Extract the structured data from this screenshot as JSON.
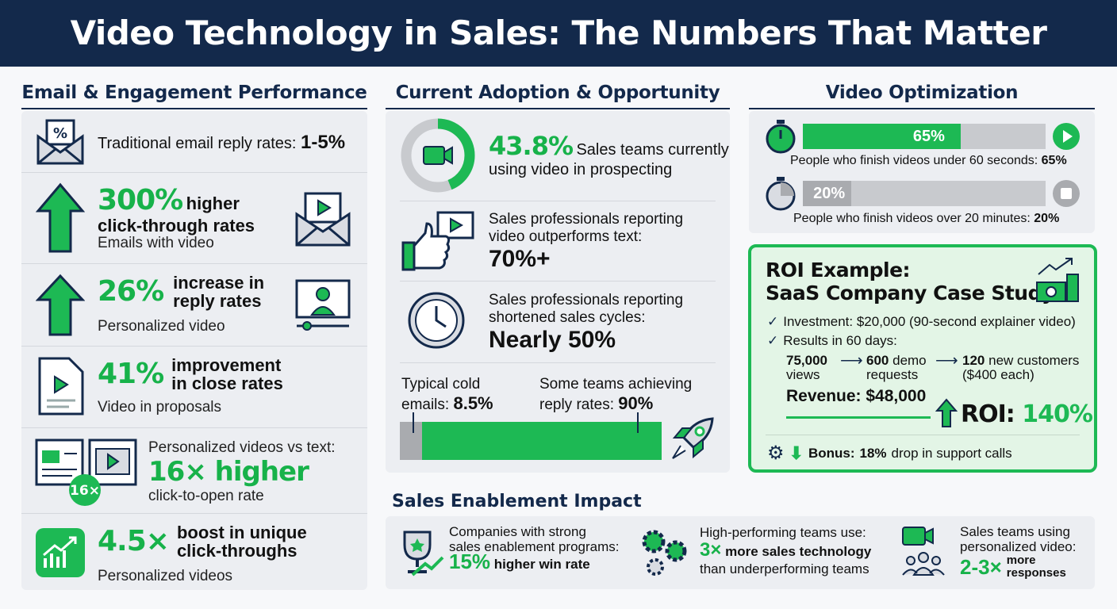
{
  "title": "Video Technology in Sales: The Numbers That Matter",
  "colors": {
    "navy": "#13294b",
    "green": "#1db954",
    "panel": "#eceef2",
    "gray": "#a9abaf"
  },
  "left": {
    "heading": "Email & Engagement Performance",
    "items": [
      {
        "icon": "envelope-percent-icon",
        "text": "Traditional email reply rates: ",
        "value": "1-5%"
      },
      {
        "icon": "arrow-up-icon",
        "stat": "300%",
        "stat_text": "higher",
        "line2": "click-through rates",
        "sub": "Emails with video",
        "side_icon": "video-email-icon"
      },
      {
        "icon": "arrow-up-icon",
        "stat": "26%",
        "stat_text": "increase in",
        "line2": "reply rates",
        "sub": "Personalized video",
        "side_icon": "video-presenter-icon"
      },
      {
        "icon": "video-document-icon",
        "stat": "41%",
        "stat_text": "improvement",
        "line2": "in close rates",
        "sub": "Video in proposals"
      },
      {
        "icon": "video-browser-icon",
        "badge": "16×",
        "pre": "Personalized videos vs text:",
        "stat": "16× higher",
        "sub": "click-to-open rate"
      },
      {
        "icon": "growth-chart-icon",
        "stat": "4.5×",
        "stat_text": "boost in unique",
        "line2": "click-throughs",
        "sub": "Personalized videos"
      }
    ]
  },
  "middle": {
    "heading": "Current Adoption & Opportunity",
    "adoption": {
      "stat": "43.8%",
      "text1": "Sales teams currently",
      "text2": "using video in prospecting",
      "pct": 43.8
    },
    "outperform": {
      "text1": "Sales professionals reporting",
      "text2": "video outperforms text:",
      "value": "70%+"
    },
    "cycles": {
      "text1": "Sales professionals reporting",
      "text2": "shortened sales cycles:",
      "value": "Nearly 50%"
    },
    "bar": {
      "left1": "Typical cold",
      "left2": "emails: ",
      "left_value": "8.5%",
      "right1": "Some teams achieving",
      "right2": "reply rates: ",
      "right_value": "90%",
      "low": 8.5,
      "high": 90
    }
  },
  "right": {
    "heading": "Video Optimization",
    "bars": [
      {
        "label": "65%",
        "pct": 65,
        "caption": "People who finish videos under 60 seconds: ",
        "caption_value": "65%",
        "icon": "stopwatch-icon",
        "end_icon": "play-icon"
      },
      {
        "label": "20%",
        "pct": 20,
        "caption": "People who finish videos over 20 minutes: ",
        "caption_value": "20%",
        "icon": "stopwatch-icon",
        "end_icon": "stop-icon"
      }
    ],
    "roi": {
      "title1": "ROI Example:",
      "title2": "SaaS Company Case Study",
      "investment": "Investment: $20,000 (90-second explainer video)",
      "results": "Results in 60 days:",
      "f1_num": "75,000",
      "f1_text": "views",
      "f2_num": "600",
      "f2_text": "demo",
      "f2_text2": "requests",
      "f3_num": "120",
      "f3_text": "new customers",
      "f3_text2": "($400 each)",
      "revenue": "Revenue: $48,000",
      "roi_label": "ROI: ",
      "roi_value": "140%",
      "bonus_label": "Bonus:",
      "bonus_value": "18%",
      "bonus_text": "drop in support calls"
    }
  },
  "bottom": {
    "heading": "Sales Enablement Impact",
    "items": [
      {
        "t1": "Companies with strong",
        "t2": "sales enablement programs:",
        "stat": "15%",
        "after": "higher win rate"
      },
      {
        "t1": "High-performing teams use:",
        "stat": "3×",
        "after": "more sales technology",
        "t3": "than underperforming teams"
      },
      {
        "t1": "Sales teams using",
        "t2": "personalized video:",
        "stat": "2-3×",
        "after": "more",
        "after2": "responses"
      }
    ]
  }
}
